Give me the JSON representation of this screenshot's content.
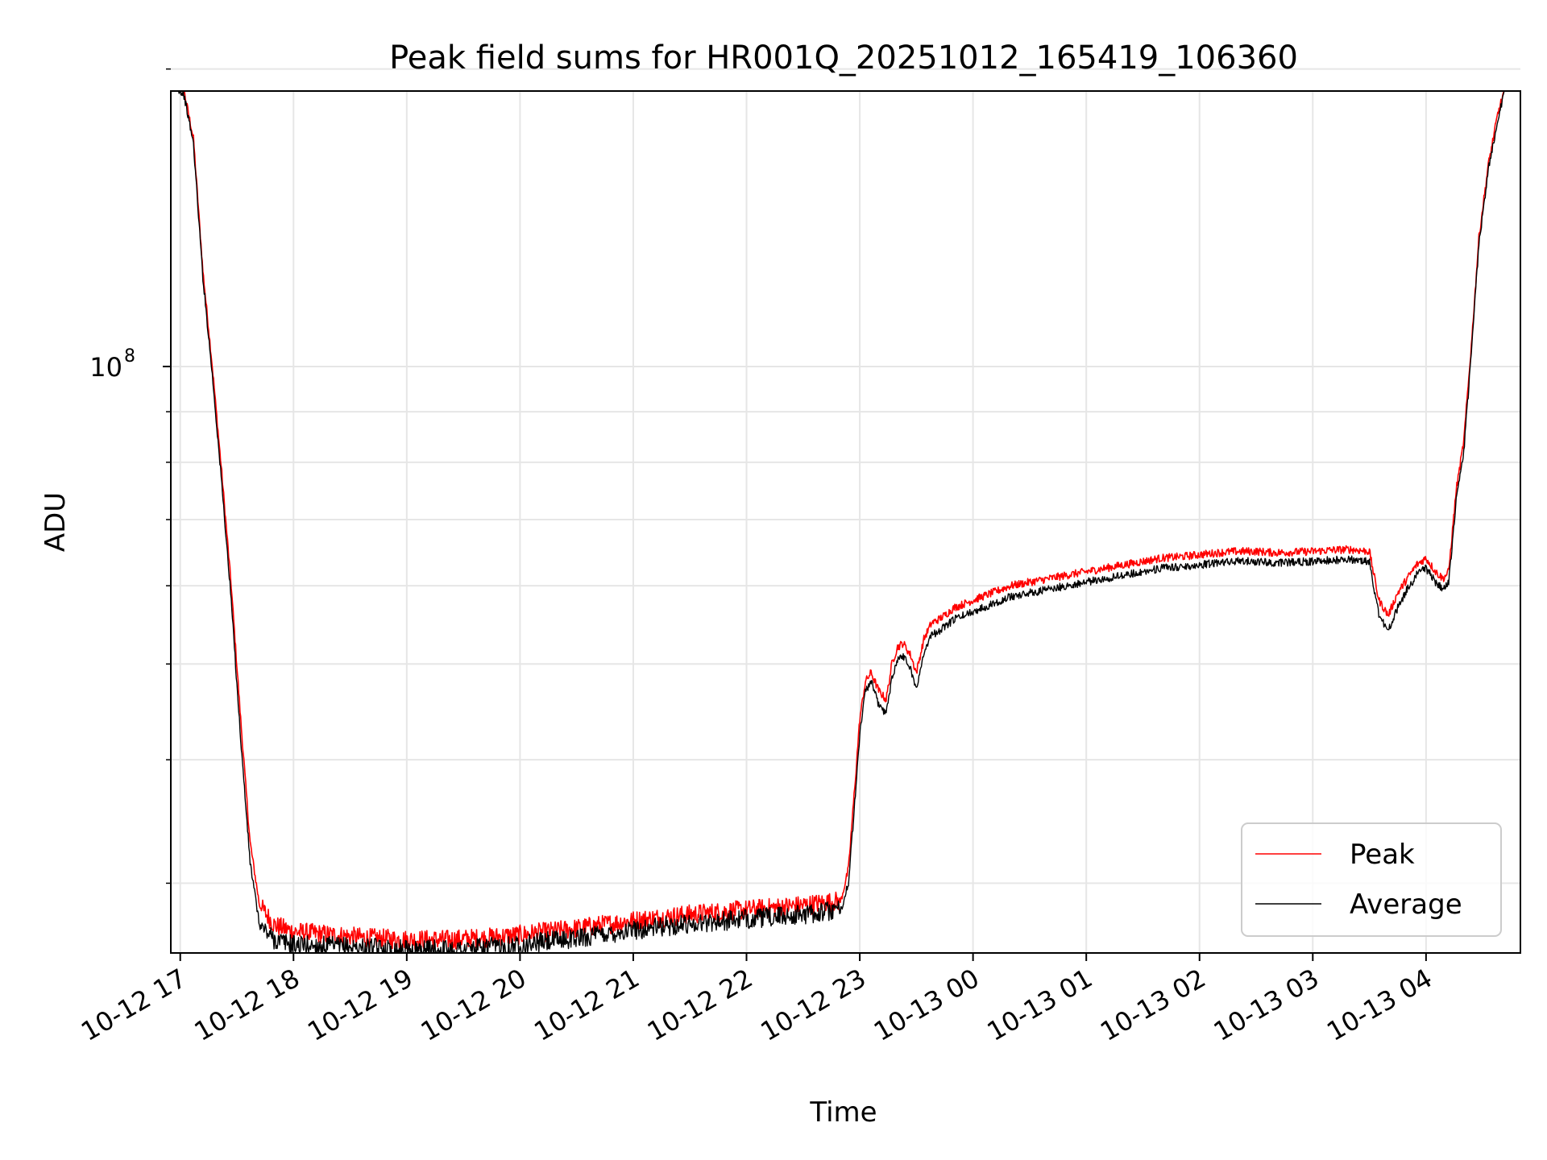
{
  "chart_data": {
    "type": "line",
    "title": "Peak field sums for HR001Q_20251012_165419_106360",
    "xlabel": "Time",
    "ylabel": "ADU",
    "yscale": "log",
    "grid": true,
    "legend_position": "lower right",
    "xlim": [
      "2025-10-12 16:55",
      "2025-10-13 04:50"
    ],
    "ylim": [
      25500000,
      190000000
    ],
    "x_ticks": [
      "2025-10-12 17:00",
      "2025-10-12 18:00",
      "2025-10-12 19:00",
      "2025-10-12 20:00",
      "2025-10-12 21:00",
      "2025-10-12 22:00",
      "2025-10-12 23:00",
      "2025-10-13 00:00",
      "2025-10-13 01:00",
      "2025-10-13 02:00",
      "2025-10-13 03:00",
      "2025-10-13 04:00"
    ],
    "x_tick_labels": [
      "10-12 17",
      "10-12 18",
      "10-12 19",
      "10-12 20",
      "10-12 21",
      "10-12 22",
      "10-12 23",
      "10-13 00",
      "10-13 01",
      "10-13 02",
      "10-13 03",
      "10-13 04"
    ],
    "y_major_ticks": [
      100000000
    ],
    "y_major_tick_labels": [
      "10",
      "8"
    ],
    "y_minor_ticks": [
      30000000,
      40000000,
      50000000,
      60000000,
      70000000,
      80000000,
      90000000,
      200000000
    ],
    "series": [
      {
        "name": "Peak",
        "color": "#ff0000",
        "x": [
          "2025-10-12 16:55",
          "2025-10-12 17:02",
          "2025-10-12 17:07",
          "2025-10-12 17:12",
          "2025-10-12 17:17",
          "2025-10-12 17:22",
          "2025-10-12 17:27",
          "2025-10-12 17:32",
          "2025-10-12 17:37",
          "2025-10-12 17:42",
          "2025-10-12 17:50",
          "2025-10-12 18:00",
          "2025-10-12 18:20",
          "2025-10-12 18:40",
          "2025-10-12 19:00",
          "2025-10-12 19:20",
          "2025-10-12 19:40",
          "2025-10-12 20:00",
          "2025-10-12 20:30",
          "2025-10-12 21:00",
          "2025-10-12 21:30",
          "2025-10-12 22:00",
          "2025-10-12 22:30",
          "2025-10-12 22:50",
          "2025-10-12 22:54",
          "2025-10-12 22:58",
          "2025-10-12 23:00",
          "2025-10-12 23:03",
          "2025-10-12 23:06",
          "2025-10-12 23:10",
          "2025-10-12 23:14",
          "2025-10-12 23:17",
          "2025-10-12 23:20",
          "2025-10-12 23:23",
          "2025-10-12 23:27",
          "2025-10-12 23:30",
          "2025-10-12 23:34",
          "2025-10-12 23:38",
          "2025-10-12 23:42",
          "2025-10-12 23:45",
          "2025-10-12 23:50",
          "2025-10-12 23:55",
          "2025-10-13 00:00",
          "2025-10-13 00:05",
          "2025-10-13 00:10",
          "2025-10-13 00:20",
          "2025-10-13 00:30",
          "2025-10-13 00:40",
          "2025-10-13 00:50",
          "2025-10-13 01:00",
          "2025-10-13 01:10",
          "2025-10-13 01:20",
          "2025-10-13 01:30",
          "2025-10-13 01:40",
          "2025-10-13 01:50",
          "2025-10-13 02:00",
          "2025-10-13 02:10",
          "2025-10-13 02:20",
          "2025-10-13 02:30",
          "2025-10-13 02:40",
          "2025-10-13 02:50",
          "2025-10-13 03:00",
          "2025-10-13 03:10",
          "2025-10-13 03:20",
          "2025-10-13 03:30",
          "2025-10-13 03:35",
          "2025-10-13 03:40",
          "2025-10-13 03:45",
          "2025-10-13 03:50",
          "2025-10-13 03:55",
          "2025-10-13 04:00",
          "2025-10-13 04:05",
          "2025-10-13 04:09",
          "2025-10-13 04:12",
          "2025-10-13 04:16",
          "2025-10-13 04:20",
          "2025-10-13 04:24",
          "2025-10-13 04:28",
          "2025-10-13 04:33",
          "2025-10-13 04:38",
          "2025-10-13 04:43"
        ],
        "values": [
          195000000,
          190000000,
          170000000,
          125000000,
          100000000,
          78000000,
          60000000,
          44000000,
          33000000,
          28500000,
          27200000,
          26800000,
          26600000,
          26400000,
          26300000,
          26300000,
          26400000,
          26600000,
          27000000,
          27500000,
          27900000,
          28200000,
          28500000,
          28800000,
          31000000,
          39000000,
          44000000,
          48000000,
          49000000,
          47000000,
          46000000,
          50000000,
          52000000,
          52500000,
          51000000,
          49000000,
          53000000,
          55000000,
          55500000,
          56000000,
          57000000,
          57500000,
          58000000,
          58500000,
          59000000,
          60000000,
          60500000,
          61000000,
          61500000,
          62000000,
          62500000,
          63000000,
          63500000,
          64000000,
          64200000,
          64500000,
          64800000,
          65000000,
          65000000,
          64800000,
          64900000,
          65000000,
          65200000,
          65300000,
          65000000,
          58000000,
          56000000,
          59000000,
          61000000,
          63000000,
          64000000,
          62000000,
          61000000,
          62000000,
          75000000,
          84000000,
          105000000,
          135000000,
          160000000,
          180000000,
          195000000
        ]
      },
      {
        "name": "Average",
        "color": "#000000",
        "x": [
          "2025-10-12 16:55",
          "2025-10-12 17:02",
          "2025-10-12 17:07",
          "2025-10-12 17:12",
          "2025-10-12 17:17",
          "2025-10-12 17:22",
          "2025-10-12 17:27",
          "2025-10-12 17:32",
          "2025-10-12 17:37",
          "2025-10-12 17:42",
          "2025-10-12 17:50",
          "2025-10-12 18:00",
          "2025-10-12 18:20",
          "2025-10-12 18:40",
          "2025-10-12 19:00",
          "2025-10-12 19:20",
          "2025-10-12 19:40",
          "2025-10-12 20:00",
          "2025-10-12 20:30",
          "2025-10-12 21:00",
          "2025-10-12 21:30",
          "2025-10-12 22:00",
          "2025-10-12 22:30",
          "2025-10-12 22:50",
          "2025-10-12 22:54",
          "2025-10-12 22:58",
          "2025-10-12 23:00",
          "2025-10-12 23:03",
          "2025-10-12 23:06",
          "2025-10-12 23:10",
          "2025-10-12 23:14",
          "2025-10-12 23:17",
          "2025-10-12 23:20",
          "2025-10-12 23:23",
          "2025-10-12 23:27",
          "2025-10-12 23:30",
          "2025-10-12 23:34",
          "2025-10-12 23:38",
          "2025-10-12 23:42",
          "2025-10-12 23:45",
          "2025-10-12 23:50",
          "2025-10-12 23:55",
          "2025-10-13 00:00",
          "2025-10-13 00:05",
          "2025-10-13 00:10",
          "2025-10-13 00:20",
          "2025-10-13 00:30",
          "2025-10-13 00:40",
          "2025-10-13 00:50",
          "2025-10-13 01:00",
          "2025-10-13 01:10",
          "2025-10-13 01:20",
          "2025-10-13 01:30",
          "2025-10-13 01:40",
          "2025-10-13 01:50",
          "2025-10-13 02:00",
          "2025-10-13 02:10",
          "2025-10-13 02:20",
          "2025-10-13 02:30",
          "2025-10-13 02:40",
          "2025-10-13 02:50",
          "2025-10-13 03:00",
          "2025-10-13 03:10",
          "2025-10-13 03:20",
          "2025-10-13 03:30",
          "2025-10-13 03:35",
          "2025-10-13 03:40",
          "2025-10-13 03:45",
          "2025-10-13 03:50",
          "2025-10-13 03:55",
          "2025-10-13 04:00",
          "2025-10-13 04:05",
          "2025-10-13 04:09",
          "2025-10-13 04:12",
          "2025-10-13 04:16",
          "2025-10-13 04:20",
          "2025-10-13 04:24",
          "2025-10-13 04:28",
          "2025-10-13 04:33",
          "2025-10-13 04:38",
          "2025-10-13 04:43"
        ],
        "values": [
          195000000,
          188000000,
          168000000,
          123000000,
          98000000,
          76000000,
          58000000,
          42000000,
          31500000,
          27200000,
          26300000,
          26000000,
          25900000,
          25800000,
          25700000,
          25700000,
          25800000,
          26000000,
          26400000,
          26900000,
          27300000,
          27600000,
          27900000,
          28200000,
          30000000,
          37500000,
          42500000,
          47000000,
          48000000,
          45500000,
          44500000,
          48500000,
          50500000,
          51000000,
          49500000,
          47000000,
          51500000,
          53500000,
          54000000,
          54500000,
          55500000,
          56000000,
          56500000,
          57000000,
          57500000,
          58500000,
          59000000,
          59500000,
          60000000,
          60500000,
          61000000,
          61500000,
          62000000,
          62500000,
          62700000,
          63000000,
          63300000,
          63500000,
          63500000,
          63300000,
          63400000,
          63500000,
          63700000,
          63800000,
          63500000,
          56000000,
          54000000,
          57000000,
          59500000,
          61500000,
          62500000,
          60500000,
          59500000,
          60500000,
          73000000,
          82000000,
          103000000,
          133000000,
          158000000,
          178000000,
          195000000
        ]
      }
    ]
  }
}
